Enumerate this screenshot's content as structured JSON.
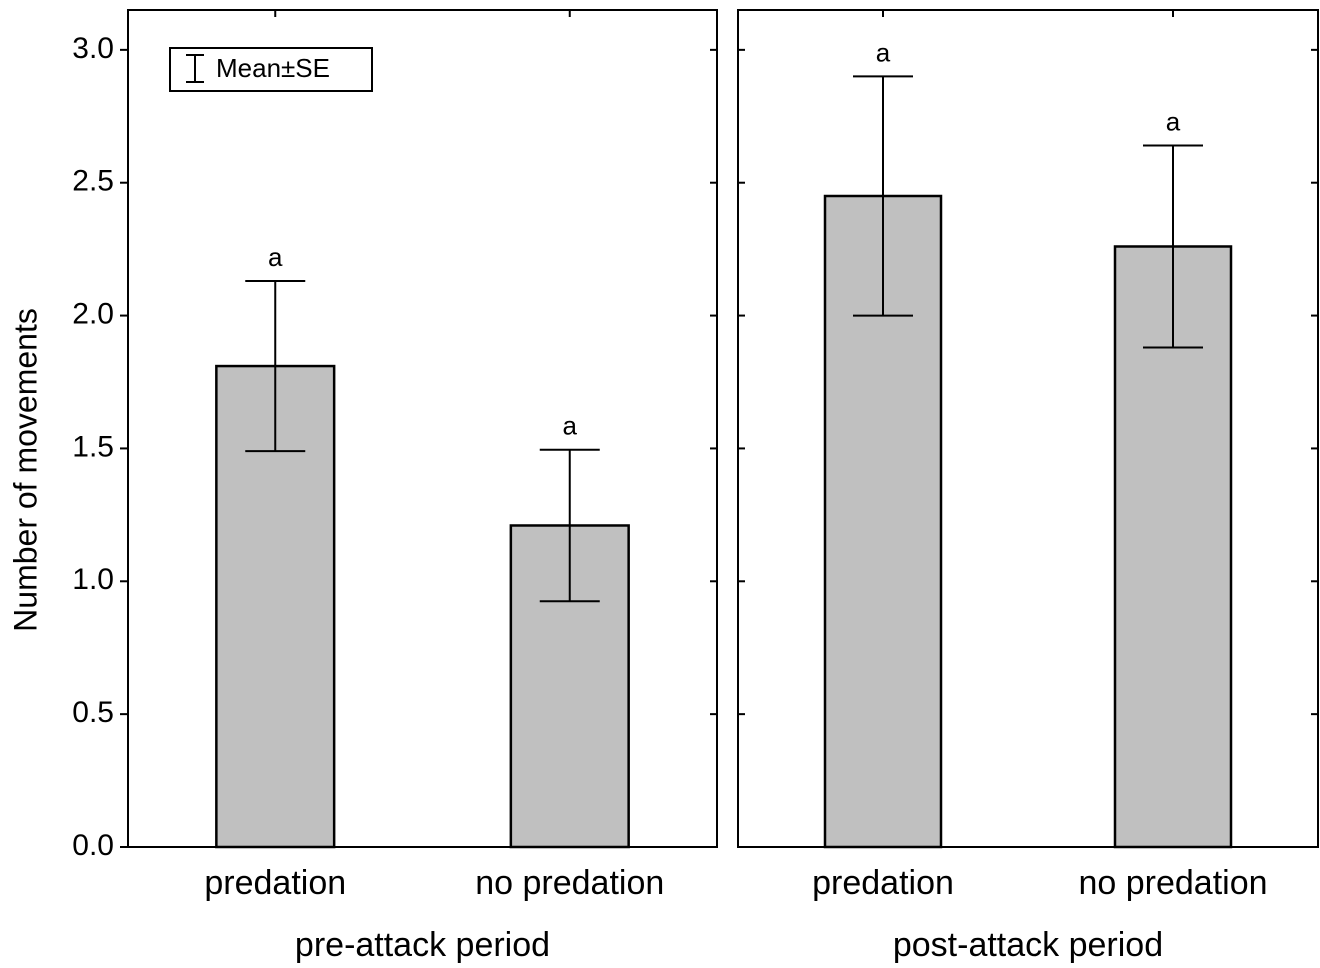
{
  "chart_data": {
    "type": "bar",
    "ylabel": "Number of movements",
    "legend": "Mean±SE",
    "ylim": [
      0,
      3.15
    ],
    "yticks": [
      {
        "value": 0,
        "label": "0.0"
      },
      0.5,
      {
        "value": 1,
        "label": "1.0"
      },
      1.5,
      {
        "value": 2,
        "label": "2.0"
      },
      2.5,
      {
        "value": 3,
        "label": "3.0"
      }
    ],
    "color": "#c0c0c0",
    "panels": [
      {
        "xlabel": "pre-attack period",
        "categories": [
          "predation",
          "no predation"
        ],
        "values": [
          1.81,
          1.21
        ],
        "errors": [
          0.32,
          0.285
        ],
        "annotations": [
          "a",
          "a"
        ]
      },
      {
        "xlabel": "post-attack period",
        "categories": [
          "predation",
          "no predation"
        ],
        "values": [
          2.45,
          2.26
        ],
        "errors": [
          0.45,
          0.38
        ],
        "annotations": [
          "a",
          "a"
        ]
      }
    ]
  }
}
